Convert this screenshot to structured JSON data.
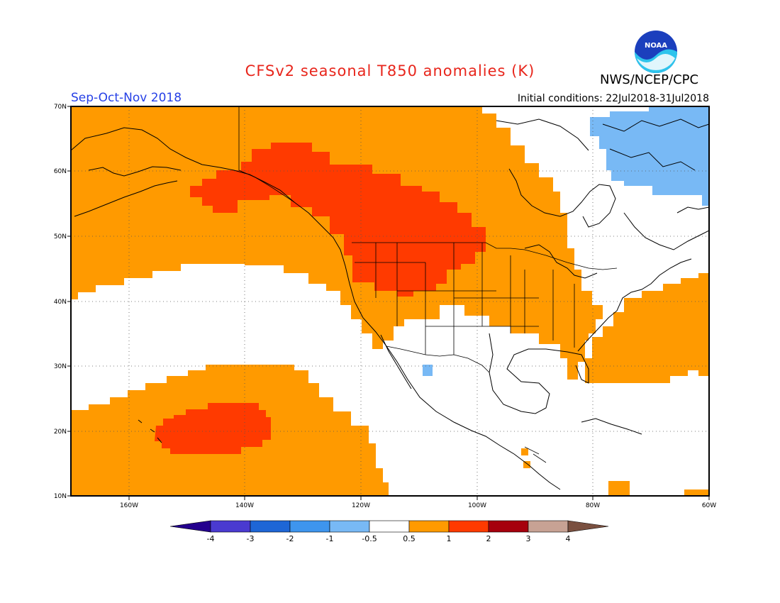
{
  "header": {
    "title": "CFSv2 seasonal T850 anomalies (K)",
    "organization": "NWS/NCEP/CPC",
    "logo_text": "NOAA",
    "season": "Sep-Oct-Nov 2018",
    "initial_conditions": "Initial conditions: 22Jul2018-31Jul2018"
  },
  "map": {
    "region": "North America and eastern Pacific",
    "lon_range": [
      -170,
      -60
    ],
    "lat_range": [
      10,
      70
    ],
    "lat_labels": [
      "70N",
      "60N",
      "50N",
      "40N",
      "30N",
      "20N",
      "10N"
    ],
    "lon_labels": [
      "160W",
      "140W",
      "120W",
      "100W",
      "80W",
      "60W"
    ],
    "gridlines": "dotted"
  },
  "legend": {
    "boundaries": [
      "-4",
      "-3",
      "-2",
      "-1",
      "-0.5",
      "0.5",
      "1",
      "2",
      "3",
      "4"
    ],
    "colors": [
      "#24008e",
      "#4a3ad0",
      "#1e66d6",
      "#3e95ee",
      "#78b9f5",
      "#ffffff",
      "#ff9a00",
      "#ff3a00",
      "#a6000d",
      "#c7a294",
      "#7a5040"
    ]
  }
}
